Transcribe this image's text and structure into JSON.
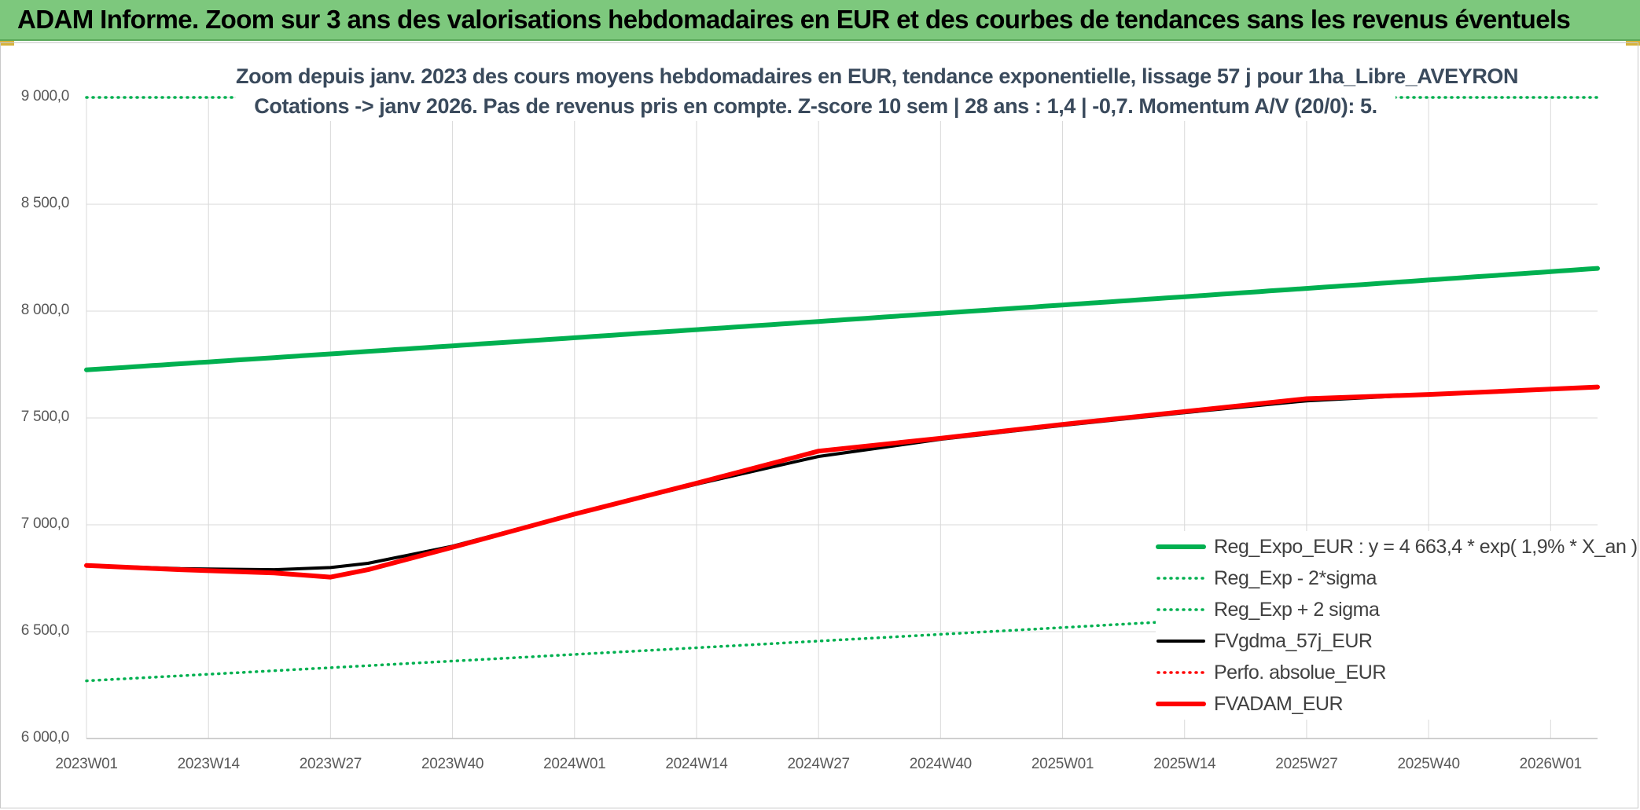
{
  "header": {
    "title": "ADAM Informe. Zoom sur 3 ans des valorisations hebdomadaires en EUR et des courbes de tendances sans les revenus éventuels"
  },
  "chart_data": {
    "type": "line",
    "title_lines": [
      "Zoom depuis janv. 2023 des cours moyens hebdomadaires en EUR, tendance exponentielle, lissage 57 j pour 1ha_Libre_AVEYRON",
      "Cotations -> janv 2026. Pas de revenus pris en compte. Z-score 10 sem | 28 ans : 1,4 | -0,7. Momentum A/V (20/0): 5."
    ],
    "xlabel": "",
    "ylabel": "",
    "ylim": [
      6000,
      9000
    ],
    "yticks": [
      "6 000,0",
      "6 500,0",
      "7 000,0",
      "7 500,0",
      "8 000,0",
      "8 500,0",
      "9 000,0"
    ],
    "ytick_values": [
      6000,
      6500,
      7000,
      7500,
      8000,
      8500,
      9000
    ],
    "xticks": [
      "2023W01",
      "2023W14",
      "2023W27",
      "2023W40",
      "2024W01",
      "2024W14",
      "2024W27",
      "2024W40",
      "2025W01",
      "2025W14",
      "2025W27",
      "2025W40",
      "2026W01"
    ],
    "x_range_weeks": [
      0,
      161
    ],
    "grid": true,
    "legend_position": "bottom-right",
    "series": [
      {
        "name": "Reg_Expo_EUR : y = 4 663,4 * exp( 1,9% *  X_an )",
        "color": "#00b050",
        "style": "solid-thick",
        "x": [
          0,
          161
        ],
        "values": [
          7725,
          8200
        ],
        "curve": "exponential"
      },
      {
        "name": "Reg_Exp - 2*sigma",
        "color": "#00b050",
        "style": "dotted",
        "x": [
          0,
          161
        ],
        "values": [
          6270,
          6660
        ],
        "curve": "exponential"
      },
      {
        "name": "Reg_Exp + 2 sigma",
        "color": "#00b050",
        "style": "dotted",
        "x": [
          0,
          161
        ],
        "values": [
          9000,
          9000
        ]
      },
      {
        "name": "FVgdma_57j_EUR",
        "color": "#000000",
        "style": "solid",
        "x": [
          0,
          10,
          20,
          26,
          30,
          39,
          52,
          65,
          78,
          91,
          104,
          117,
          130,
          143,
          156,
          161
        ],
        "values": [
          6810,
          6795,
          6790,
          6800,
          6820,
          6900,
          7050,
          7190,
          7320,
          7400,
          7465,
          7525,
          7580,
          7610,
          7635,
          7645
        ]
      },
      {
        "name": "Perfo. absolue_EUR",
        "color": "#ff0000",
        "style": "dotted",
        "x": [],
        "values": []
      },
      {
        "name": "FVADAM_EUR",
        "color": "#ff0000",
        "style": "solid-thick",
        "x": [
          0,
          10,
          20,
          26,
          30,
          39,
          52,
          65,
          78,
          91,
          104,
          117,
          130,
          143,
          156,
          161
        ],
        "values": [
          6810,
          6790,
          6775,
          6755,
          6790,
          6895,
          7050,
          7195,
          7345,
          7405,
          7470,
          7530,
          7590,
          7610,
          7635,
          7645
        ]
      }
    ]
  }
}
